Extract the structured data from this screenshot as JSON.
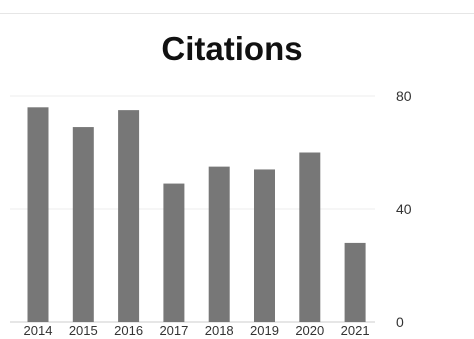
{
  "chart_data": {
    "type": "bar",
    "title": "Citations",
    "xlabel": "",
    "ylabel": "",
    "categories": [
      "2014",
      "2015",
      "2016",
      "2017",
      "2018",
      "2019",
      "2020",
      "2021"
    ],
    "values": [
      76,
      69,
      75,
      49,
      55,
      54,
      60,
      28
    ],
    "ylim": [
      0,
      80
    ],
    "yticks": [
      "0",
      "40",
      "80"
    ],
    "y_axis_side": "right",
    "grid": true,
    "legend": "none",
    "bar_color": "#777777"
  }
}
